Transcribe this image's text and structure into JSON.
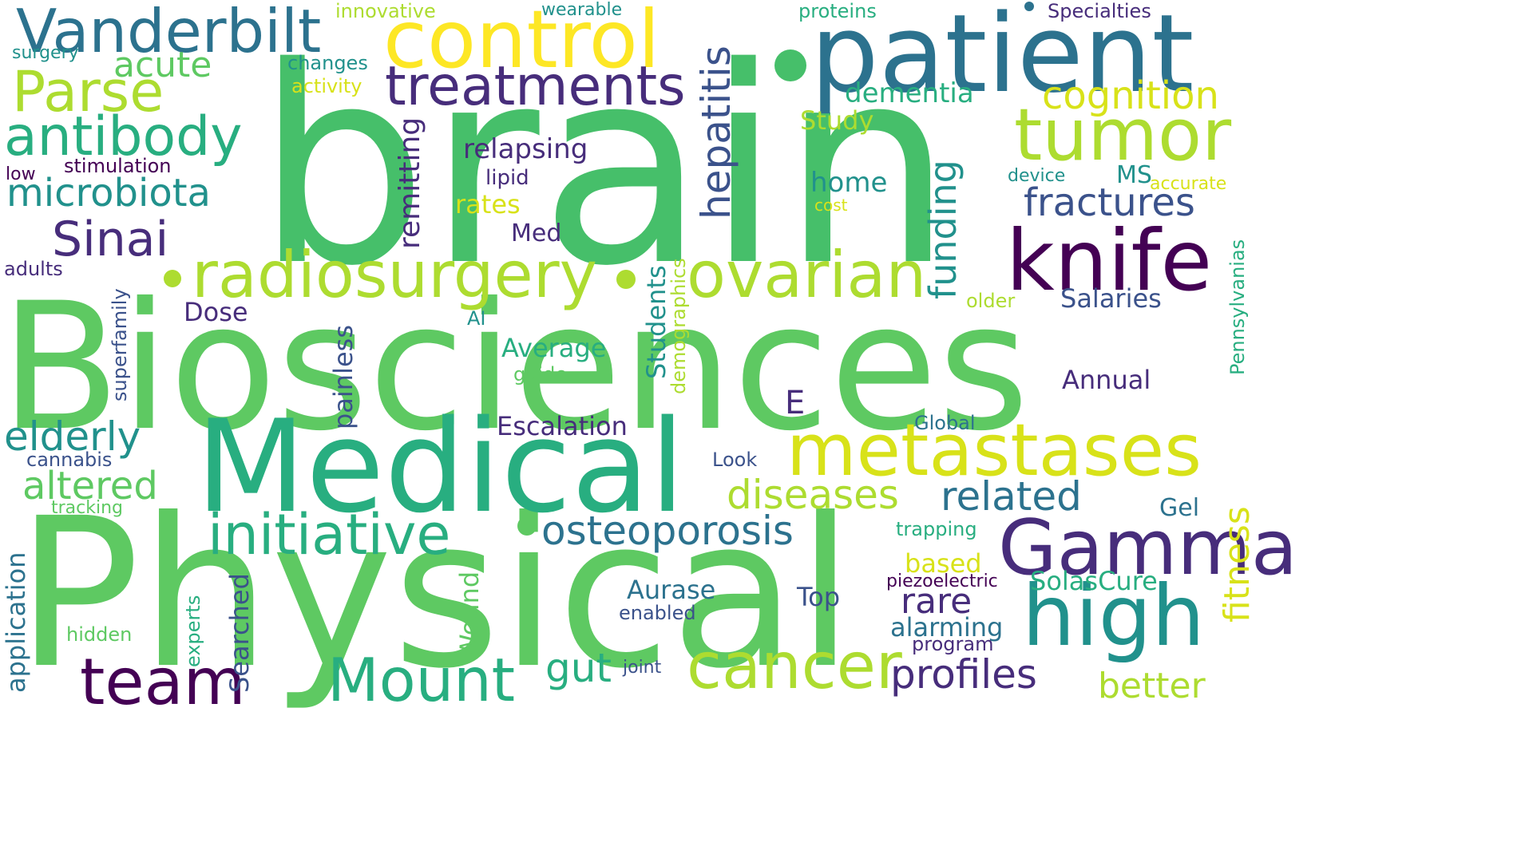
{
  "palette": {
    "c1": "#440154",
    "c2": "#472d7b",
    "c3": "#3b528b",
    "c4": "#2c728e",
    "c5": "#21918c",
    "c6": "#28ae80",
    "c7": "#5ec962",
    "c8": "#addc30",
    "c9": "#d8e219",
    "c10": "#fde725"
  },
  "words": {
    "brain": "brain",
    "biosciences": "Biosciences",
    "physical": "Physical",
    "medical": "Medical",
    "patient": "patient",
    "control": "control",
    "vanderbilt": "Vanderbilt",
    "treatments": "treatments",
    "tumor": "tumor",
    "knife": "knife",
    "radiosurgery": "radiosurgery",
    "ovarian": "ovarian",
    "metastases": "metastases",
    "gamma": "Gamma",
    "high": "high",
    "cancer": "cancer",
    "team": "team",
    "mount": "Mount",
    "initiative": "initiative",
    "osteoporosis": "osteoporosis",
    "parse": "Parse",
    "antibody": "antibody",
    "microbiota": "microbiota",
    "sinai": "Sinai",
    "acute": "acute",
    "cognition": "cognition",
    "fractures": "fractures",
    "hepatitis": "hepatitis",
    "funding": "funding",
    "remitting": "remitting",
    "relapsing": "relapsing",
    "dementia": "dementia",
    "study": "Study",
    "home": "home",
    "ms": "MS",
    "accurate": "accurate",
    "device": "device",
    "cost": "cost",
    "lipid": "lipid",
    "rates": "rates",
    "med": "Med",
    "salaries": "Salaries",
    "older": "older",
    "pennsylvanias": "Pennsylvanias",
    "annual": "Annual",
    "e": "E",
    "global": "Global",
    "escalation": "Escalation",
    "average": "Average",
    "guide": "guide",
    "ai": "AI",
    "students": "Students",
    "demographics": "demographics",
    "painless": "painless",
    "dose": "Dose",
    "superfamily": "superfamily",
    "adults": "adults",
    "elderly": "elderly",
    "cannabis": "cannabis",
    "altered": "altered",
    "tracking": "tracking",
    "diseases": "diseases",
    "related": "related",
    "look": "Look",
    "gel": "Gel",
    "fitness": "fitness",
    "trapping": "trapping",
    "based": "based",
    "piezoelectric": "piezoelectric",
    "solascure": "SolasCure",
    "rare": "rare",
    "aurase": "Aurase",
    "enabled": "enabled",
    "top": "Top",
    "alarming": "alarming",
    "program": "program",
    "profiles": "profiles",
    "better": "better",
    "gut": "gut",
    "joint": "joint",
    "wound": "Wound",
    "searched": "Searched",
    "experts": "experts",
    "hidden": "hidden",
    "application": "application",
    "innovative": "innovative",
    "wearable": "wearable",
    "proteins": "proteins",
    "specialties": "Specialties",
    "surgery": "surgery",
    "changes": "changes",
    "activity": "activity",
    "stimulation": "stimulation",
    "low": "low"
  }
}
